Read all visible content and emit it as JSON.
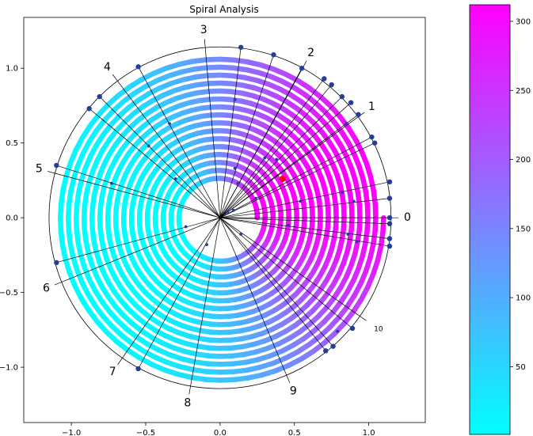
{
  "chart_data": {
    "type": "scatter",
    "title": "Spiral Analysis",
    "xlabel": "",
    "ylabel": "",
    "xlim": [
      -1.32,
      1.38
    ],
    "ylim": [
      -1.37,
      1.34
    ],
    "xticks": [
      -1.0,
      -0.5,
      0.0,
      0.5,
      1.0
    ],
    "xtick_labels": [
      "−1.0",
      "−0.5",
      "0.0",
      "0.5",
      "1.0"
    ],
    "yticks": [
      -1.0,
      -0.5,
      0.0,
      0.5,
      1.0
    ],
    "ytick_labels": [
      "−1.0",
      "−0.5",
      "0.0",
      "0.5",
      "1.0"
    ],
    "grid": false,
    "spiral": {
      "start_radius": 0.25,
      "end_radius": 1.1,
      "turns": 16,
      "colorscale": [
        "#00ffff",
        "#ff00ff"
      ]
    },
    "outer_circle_radius": 1.15,
    "ray_labels": [
      {
        "text": "0",
        "angle_deg": 0,
        "size": "large"
      },
      {
        "text": "1",
        "angle_deg": 36,
        "size": "large"
      },
      {
        "text": "2",
        "angle_deg": 61,
        "size": "large"
      },
      {
        "text": "3",
        "angle_deg": 95,
        "size": "large"
      },
      {
        "text": "4",
        "angle_deg": 127,
        "size": "large"
      },
      {
        "text": "5",
        "angle_deg": 165,
        "size": "large"
      },
      {
        "text": "6",
        "angle_deg": 202,
        "size": "large"
      },
      {
        "text": "7",
        "angle_deg": 235,
        "size": "large"
      },
      {
        "text": "8",
        "angle_deg": 260,
        "size": "large"
      },
      {
        "text": "9",
        "angle_deg": 293,
        "size": "large"
      },
      {
        "text": "10",
        "angle_deg": 325,
        "size": "small"
      }
    ],
    "outer_points": [
      {
        "x": 1.14,
        "y": 0.0
      },
      {
        "x": 1.14,
        "y": 0.13
      },
      {
        "x": 1.14,
        "y": 0.24
      },
      {
        "x": 1.14,
        "y": -0.04
      },
      {
        "x": 1.14,
        "y": -0.14
      },
      {
        "x": 1.14,
        "y": -0.19
      },
      {
        "x": 1.04,
        "y": 0.5
      },
      {
        "x": 1.02,
        "y": 0.54
      },
      {
        "x": 0.93,
        "y": 0.69
      },
      {
        "x": 0.88,
        "y": 0.77
      },
      {
        "x": 0.82,
        "y": 0.81
      },
      {
        "x": 0.75,
        "y": 0.89
      },
      {
        "x": 0.7,
        "y": 0.93
      },
      {
        "x": 0.55,
        "y": 1.0
      },
      {
        "x": 0.36,
        "y": 1.09
      },
      {
        "x": 0.14,
        "y": 1.14
      },
      {
        "x": -0.55,
        "y": 1.01
      },
      {
        "x": -0.81,
        "y": 0.81
      },
      {
        "x": -0.88,
        "y": 0.73
      },
      {
        "x": -1.1,
        "y": 0.35
      },
      {
        "x": -1.1,
        "y": -0.3
      },
      {
        "x": -0.55,
        "y": -1.01
      },
      {
        "x": 0.71,
        "y": -0.89
      },
      {
        "x": 0.76,
        "y": -0.86
      },
      {
        "x": 0.89,
        "y": -0.74
      }
    ],
    "inner_points": [
      {
        "x": 0.42,
        "y": 0.25
      },
      {
        "x": 0.1,
        "y": 0.79
      },
      {
        "x": 0.12,
        "y": 0.23
      },
      {
        "x": 0.1,
        "y": 0.33
      },
      {
        "x": 0.05,
        "y": 0.04
      },
      {
        "x": 0.09,
        "y": 0.05
      },
      {
        "x": 0.3,
        "y": 0.4
      },
      {
        "x": 0.24,
        "y": 0.13
      },
      {
        "x": 0.54,
        "y": 0.11
      },
      {
        "x": 0.82,
        "y": 0.17
      },
      {
        "x": 0.9,
        "y": 0.11
      },
      {
        "x": 0.38,
        "y": 0.39
      },
      {
        "x": 0.85,
        "y": 0.63
      },
      {
        "x": -0.34,
        "y": 0.63
      },
      {
        "x": -0.48,
        "y": 0.48
      },
      {
        "x": -0.3,
        "y": 0.26
      },
      {
        "x": -0.73,
        "y": 0.23
      },
      {
        "x": -0.23,
        "y": -0.06
      },
      {
        "x": -0.09,
        "y": -0.18
      },
      {
        "x": 0.14,
        "y": -0.11
      },
      {
        "x": 0.46,
        "y": -0.05
      },
      {
        "x": 0.86,
        "y": -0.11
      },
      {
        "x": 0.92,
        "y": -0.16
      },
      {
        "x": 0.79,
        "y": -0.76
      }
    ],
    "highlight_point": {
      "x": 0.42,
      "y": 0.26
    },
    "colorbar": {
      "min": 1,
      "max": 312,
      "ticks": [
        50,
        100,
        150,
        200,
        250,
        300
      ],
      "tick_labels": [
        "50",
        "100",
        "150",
        "200",
        "250",
        "300"
      ],
      "colors": [
        "#00ffff",
        "#ff00ff"
      ]
    }
  },
  "colors": {
    "point_blue": "#1f3f99",
    "highlight_red": "#ff0000",
    "line": "#000000"
  }
}
